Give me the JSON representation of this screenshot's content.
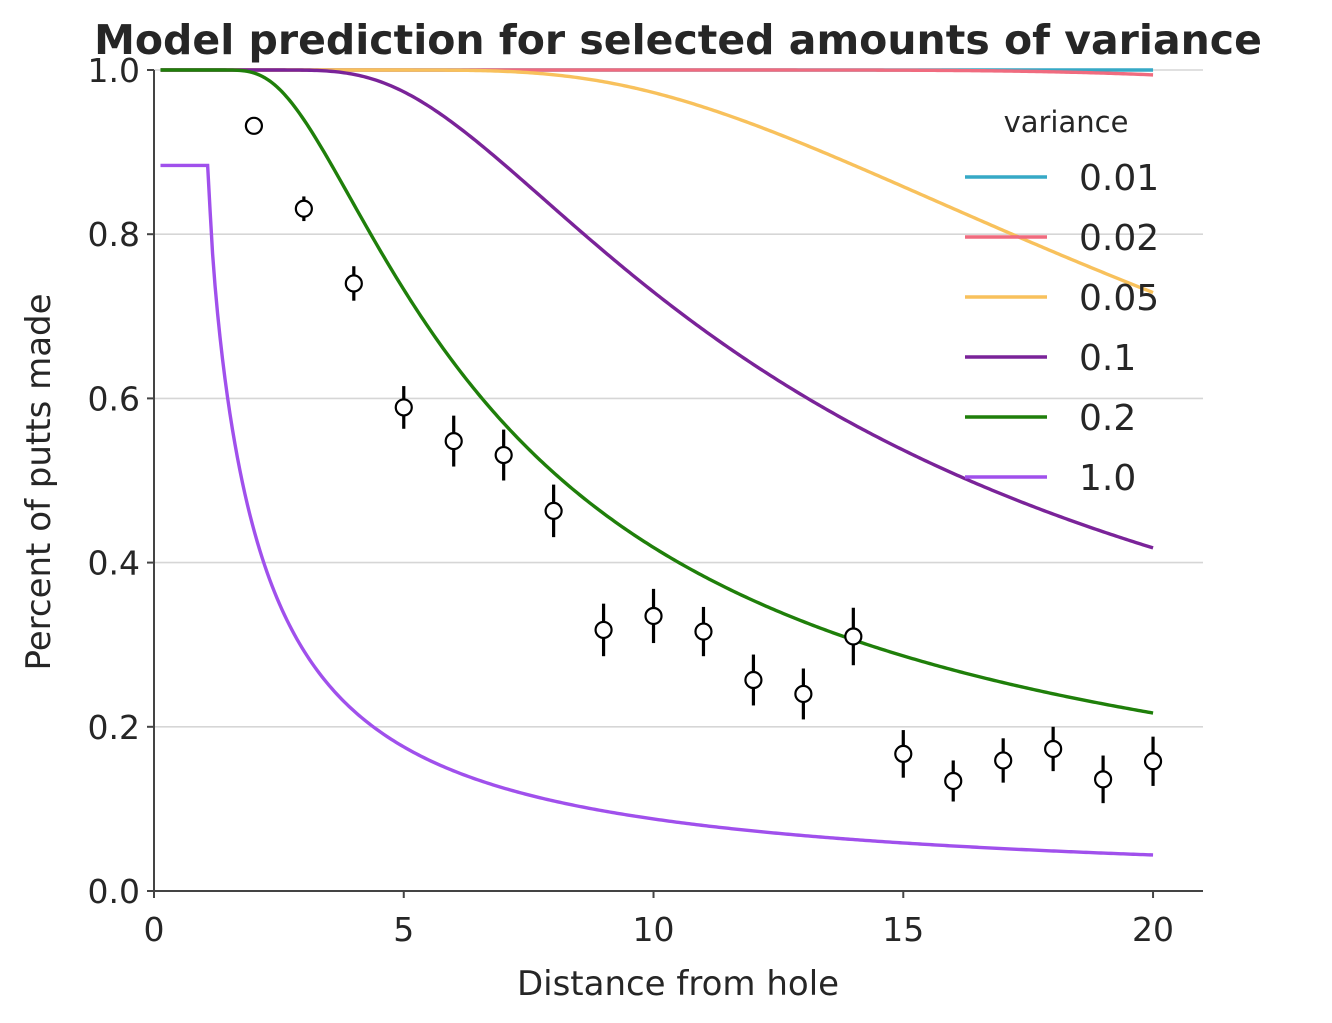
{
  "chart_data": {
    "type": "line",
    "title": "Model prediction for selected amounts of variance",
    "xlabel": "Distance from hole",
    "ylabel": "Percent of putts made",
    "xlim": [
      0,
      21
    ],
    "ylim": [
      0,
      1.0
    ],
    "xticks": [
      "0",
      "5",
      "10",
      "15",
      "20"
    ],
    "yticks": [
      "0.0",
      "0.2",
      "0.4",
      "0.6",
      "0.8",
      "1.0"
    ],
    "grid": "horizontal",
    "legend": {
      "title": "variance",
      "placement": "top-right"
    },
    "series": [
      {
        "name": "0.01",
        "color": "#36a9c6",
        "variance": 0.01
      },
      {
        "name": "0.02",
        "color": "#f06b7f",
        "variance": 0.02
      },
      {
        "name": "0.05",
        "color": "#f8c15c",
        "variance": 0.05
      },
      {
        "name": "0.1",
        "color": "#7a2399",
        "variance": 0.1
      },
      {
        "name": "0.2",
        "color": "#1f7f0a",
        "variance": 0.2
      },
      {
        "name": "1.0",
        "color": "#a050ec",
        "variance": 1.0
      }
    ],
    "observations": {
      "x": [
        2,
        3,
        4,
        5,
        6,
        7,
        8,
        9,
        10,
        11,
        12,
        13,
        14,
        15,
        16,
        17,
        18,
        19,
        20
      ],
      "y": [
        0.932,
        0.831,
        0.74,
        0.589,
        0.548,
        0.531,
        0.463,
        0.318,
        0.335,
        0.316,
        0.257,
        0.24,
        0.31,
        0.167,
        0.134,
        0.159,
        0.173,
        0.136,
        0.158
      ],
      "err": [
        0.006,
        0.015,
        0.021,
        0.026,
        0.031,
        0.031,
        0.032,
        0.032,
        0.033,
        0.03,
        0.031,
        0.031,
        0.035,
        0.029,
        0.025,
        0.027,
        0.027,
        0.029,
        0.03
      ]
    }
  }
}
